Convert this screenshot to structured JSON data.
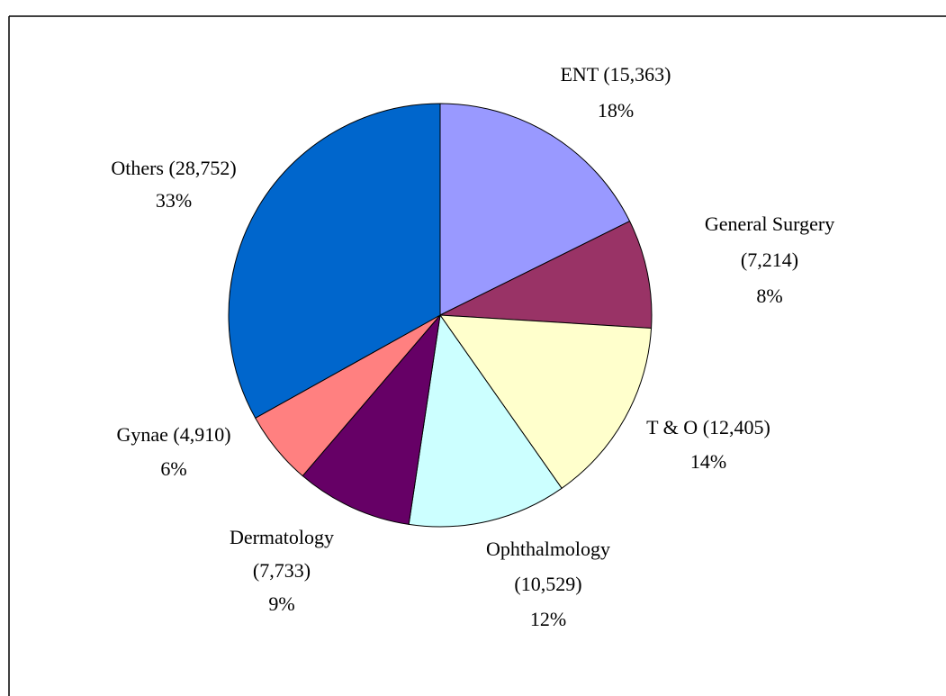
{
  "chart_data": {
    "type": "pie",
    "categories": [
      "ENT",
      "General Surgery",
      "T & O",
      "Ophthalmology",
      "Dermatology",
      "Gynae",
      "Others"
    ],
    "values": [
      15363,
      7214,
      12405,
      10529,
      7733,
      4910,
      28752
    ],
    "value_labels": [
      "(15,363)",
      "(7,214)",
      "(12,405)",
      "(10,529)",
      "(7,733)",
      "(4,910)",
      "(28,752)"
    ],
    "percent_labels": [
      "18%",
      "8%",
      "14%",
      "12%",
      "9%",
      "6%",
      "33%"
    ],
    "colors": [
      "#9999FF",
      "#993366",
      "#FFFFCC",
      "#CCFFFF",
      "#660066",
      "#FF8080",
      "#0066CC"
    ]
  }
}
